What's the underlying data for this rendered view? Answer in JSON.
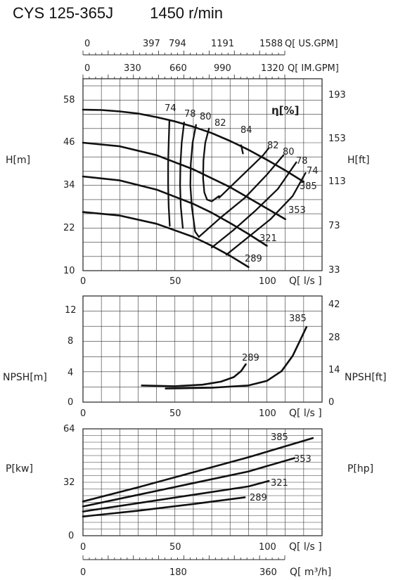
{
  "title": "CYS 125-365J",
  "speed": "1450 r/min",
  "colors": {
    "grid": "#333333",
    "curve": "#111111",
    "background": "#ffffff"
  },
  "top_scales": [
    {
      "label": "Q[ US.GPM]",
      "ticks": [
        "0",
        "397",
        "794",
        "1191",
        "1588"
      ],
      "values": [
        0,
        397,
        794,
        1191,
        1588
      ]
    },
    {
      "label": "Q[ IM.GPM]",
      "ticks": [
        "0",
        "330",
        "660",
        "990",
        "1320"
      ],
      "values": [
        0,
        330,
        660,
        990,
        1320
      ]
    }
  ],
  "bottom_scale": {
    "label": "Q[ m³/h]",
    "ticks": [
      "0",
      "180",
      "360"
    ],
    "values": [
      0,
      180,
      360
    ]
  },
  "chart_data": [
    {
      "type": "line",
      "xlabel": "Q[ l/s ]",
      "ylabel": "H[m]",
      "y2label": "H[ft]",
      "xlim": [
        0,
        130
      ],
      "ylim": [
        10,
        64
      ],
      "xticks": [
        "0",
        "50",
        "100"
      ],
      "yticks": [
        "10",
        "22",
        "34",
        "46",
        "58"
      ],
      "y2ticks": [
        "33",
        "73",
        "113",
        "153",
        "193"
      ],
      "efficiency_label": "η[%]",
      "series": [
        {
          "name": "385",
          "x": [
            0,
            10,
            20,
            30,
            40,
            50,
            60,
            70,
            80,
            90,
            100,
            110,
            120
          ],
          "y": [
            55.3,
            55.2,
            54.8,
            54.2,
            53.2,
            52,
            50.5,
            48.7,
            46.5,
            44,
            41.2,
            38.2,
            35
          ]
        },
        {
          "name": "353",
          "x": [
            0,
            20,
            40,
            60,
            80,
            100,
            110
          ],
          "y": [
            46,
            45,
            42.5,
            38.5,
            33.5,
            27.5,
            24.5
          ]
        },
        {
          "name": "321",
          "x": [
            0,
            20,
            40,
            60,
            70,
            80,
            90,
            100
          ],
          "y": [
            36.5,
            35.4,
            32.8,
            28.8,
            26.3,
            23.4,
            20.3,
            17
          ]
        },
        {
          "name": "289",
          "x": [
            0,
            20,
            40,
            60,
            70,
            80,
            90
          ],
          "y": [
            26.5,
            25.5,
            23.2,
            19.5,
            17,
            14.2,
            11
          ]
        }
      ],
      "efficiency_curves": [
        {
          "name": "74",
          "x": [
            47,
            46.6,
            46.3,
            46.3,
            46.6,
            47.2
          ],
          "y": [
            52.2,
            46,
            40,
            34,
            28,
            22.6
          ]
        },
        {
          "name": "78",
          "x": [
            55,
            53.7,
            53,
            52.8,
            53.2,
            54.3
          ],
          "y": [
            51.7,
            46,
            40,
            34,
            28,
            22
          ]
        },
        {
          "name": "80",
          "x": [
            61.5,
            59.6,
            58.6,
            58.4,
            59.2,
            61,
            63
          ],
          "y": [
            51,
            46,
            40,
            34,
            28,
            21,
            19.5
          ]
        },
        {
          "name": "82",
          "x": [
            68.5,
            66.5,
            65.5,
            65.3,
            66,
            67.5,
            70,
            74
          ],
          "y": [
            50,
            46,
            41,
            36,
            32,
            30,
            29.5,
            31
          ]
        },
        {
          "name": "84",
          "x": [
            86,
            87
          ],
          "y": [
            45.3,
            43
          ]
        },
        {
          "name": "82",
          "x": [
            74,
            82,
            90,
            98,
            101
          ],
          "y": [
            30.5,
            34.5,
            38.5,
            42.5,
            44.5
          ]
        },
        {
          "name": "80",
          "x": [
            63,
            75,
            88,
            100,
            109
          ],
          "y": [
            19.5,
            25,
            30.5,
            37,
            42.5
          ]
        },
        {
          "name": "78",
          "x": [
            70,
            82,
            94,
            106,
            116
          ],
          "y": [
            16.5,
            21.5,
            27,
            33,
            40.5
          ]
        },
        {
          "name": "74",
          "x": [
            78,
            90,
            102,
            114,
            121
          ],
          "y": [
            14.5,
            19.5,
            24.5,
            31,
            37.5
          ]
        }
      ],
      "labels": {
        "385": "385",
        "353": "353",
        "321": "321",
        "289": "289",
        "e74": "74",
        "e78": "78",
        "e80": "80",
        "e82": "82",
        "e84": "84",
        "r82": "82",
        "r80": "80",
        "r78": "78",
        "r74": "74"
      }
    },
    {
      "type": "line",
      "xlabel": "Q[ l/s ]",
      "ylabel": "NPSH[m]",
      "y2label": "NPSH[ft]",
      "xlim": [
        0,
        130
      ],
      "ylim": [
        0,
        14
      ],
      "xticks": [
        "0",
        "50",
        "100"
      ],
      "yticks": [
        "0",
        "4",
        "8",
        "12"
      ],
      "y2ticks": [
        "0",
        "14",
        "28",
        "42"
      ],
      "series": [
        {
          "name": "385",
          "x": [
            45,
            70,
            90,
            100,
            108,
            114,
            118,
            121.5
          ],
          "y": [
            1.8,
            1.9,
            2.2,
            2.8,
            4.1,
            6.1,
            8.1,
            9.9
          ]
        },
        {
          "name": "289",
          "x": [
            32,
            50,
            65,
            75,
            82,
            86,
            88.5
          ],
          "y": [
            2.2,
            2.1,
            2.3,
            2.7,
            3.3,
            4.1,
            5.0
          ]
        }
      ]
    },
    {
      "type": "line",
      "xlabel": "Q[ l/s ]",
      "ylabel": "P[kw]",
      "y2label": "P[hp]",
      "xlim": [
        0,
        130
      ],
      "ylim": [
        0,
        64
      ],
      "xticks": [
        "0",
        "50",
        "100"
      ],
      "yticks": [
        "0",
        "32",
        "64"
      ],
      "series": [
        {
          "name": "385",
          "x": [
            0,
            30,
            60,
            90,
            125
          ],
          "y": [
            20.5,
            29,
            38,
            47,
            58.5
          ]
        },
        {
          "name": "353",
          "x": [
            0,
            30,
            60,
            90,
            115
          ],
          "y": [
            17.5,
            24.5,
            31.5,
            38.5,
            46.5
          ]
        },
        {
          "name": "321",
          "x": [
            0,
            30,
            60,
            90,
            101
          ],
          "y": [
            14.5,
            19.5,
            24.5,
            29.5,
            32.8
          ]
        },
        {
          "name": "289",
          "x": [
            0,
            30,
            60,
            88
          ],
          "y": [
            11.5,
            15,
            19,
            23
          ]
        }
      ]
    }
  ]
}
